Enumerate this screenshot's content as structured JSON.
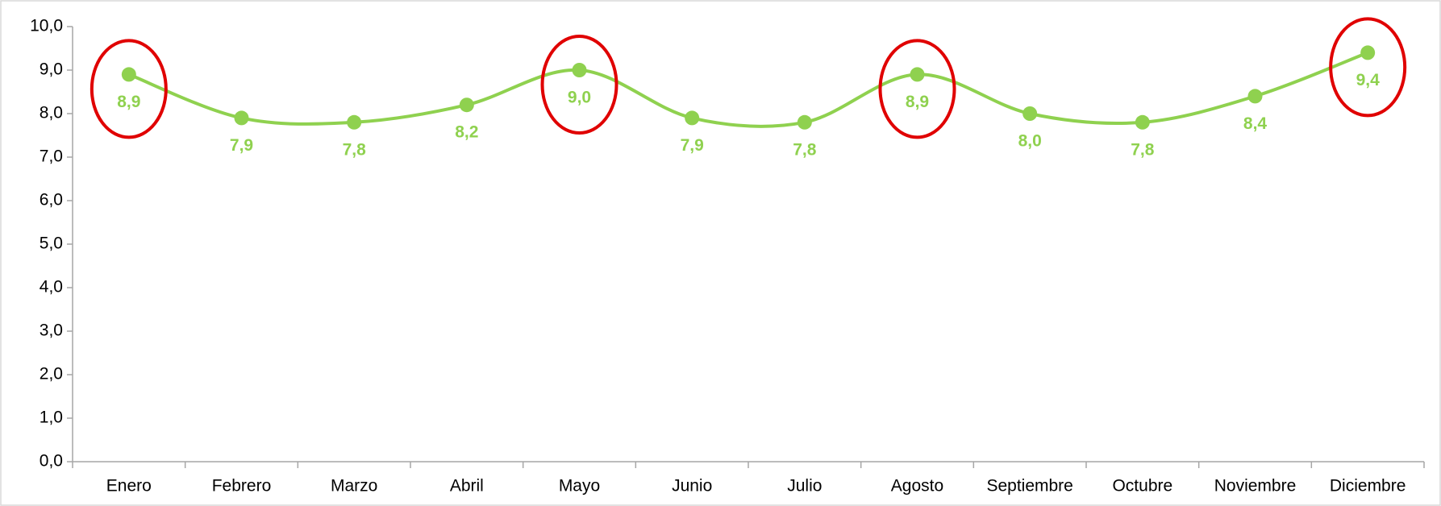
{
  "chart_data": {
    "type": "line",
    "categories": [
      "Enero",
      "Febrero",
      "Marzo",
      "Abril",
      "Mayo",
      "Junio",
      "Julio",
      "Agosto",
      "Septiembre",
      "Octubre",
      "Noviembre",
      "Diciembre"
    ],
    "series": [
      {
        "name": null,
        "color": "#8fd14f",
        "values": [
          8.9,
          7.9,
          7.8,
          8.2,
          9.0,
          7.9,
          7.8,
          8.9,
          8.0,
          7.8,
          8.4,
          9.4
        ],
        "value_labels": [
          "8,9",
          "7,9",
          "7,8",
          "8,2",
          "9,0",
          "7,9",
          "7,8",
          "8,9",
          "8,0",
          "7,8",
          "8,4",
          "9,4"
        ]
      }
    ],
    "ylim": [
      0,
      10
    ],
    "yticks": [
      {
        "value": 0,
        "label": "0,0"
      },
      {
        "value": 1,
        "label": "1,0"
      },
      {
        "value": 2,
        "label": "2,0"
      },
      {
        "value": 3,
        "label": "3,0"
      },
      {
        "value": 4,
        "label": "4,0"
      },
      {
        "value": 5,
        "label": "5,0"
      },
      {
        "value": 6,
        "label": "6,0"
      },
      {
        "value": 7,
        "label": "7,0"
      },
      {
        "value": 8,
        "label": "8,0"
      },
      {
        "value": 9,
        "label": "9,0"
      },
      {
        "value": 10,
        "label": "10,0"
      }
    ],
    "smooth": true,
    "highlighted": [
      0,
      4,
      7,
      11
    ],
    "highlight_color": "#e00000"
  }
}
